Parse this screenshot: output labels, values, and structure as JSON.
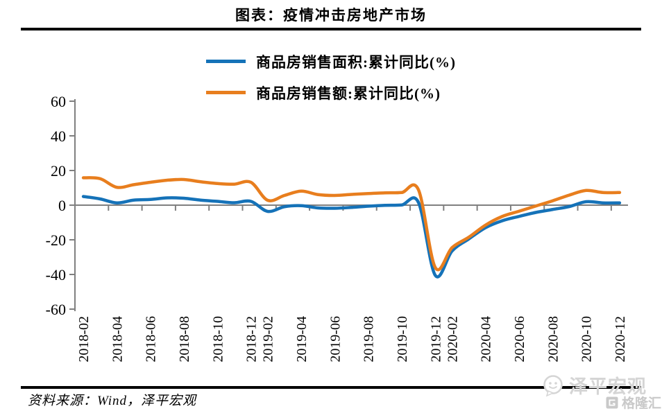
{
  "title": "图表：疫情冲击房地产市场",
  "legend": {
    "items": [
      {
        "label": "商品房销售面积:累计同比(%)",
        "color": "#1572B8"
      },
      {
        "label": "商品房销售额:累计同比(%)",
        "color": "#E87E1E"
      }
    ]
  },
  "source": "资料来源：Wind，泽平宏观",
  "watermark": {
    "name_label": "泽平宏观",
    "logo_label": "格隆汇"
  },
  "colors": {
    "axis": "#7f7f7f",
    "series_area": "#1572B8",
    "series_value": "#E87E1E",
    "watermark_gray": "#d5d5d5"
  },
  "chart_data": {
    "type": "line",
    "title": "图表：疫情冲击房地产市场",
    "xlabel": "",
    "ylabel": "",
    "ylim": [
      -60,
      60
    ],
    "yticks": [
      60,
      40,
      20,
      0,
      -20,
      -40,
      -60
    ],
    "grid": "zero-line-only",
    "legend_position": "top",
    "x_labels_shown": [
      "2018-02",
      "2018-04",
      "2018-06",
      "2018-08",
      "2018-10",
      "2018-12",
      "2019-02",
      "2019-04",
      "2019-06",
      "2019-08",
      "2019-10",
      "2019-12",
      "2020-02",
      "2020-04",
      "2020-06",
      "2020-08",
      "2020-10"
    ],
    "x": [
      "2018-02",
      "2018-03",
      "2018-04",
      "2018-05",
      "2018-06",
      "2018-07",
      "2018-08",
      "2018-09",
      "2018-10",
      "2018-11",
      "2018-12",
      "2019-02",
      "2019-03",
      "2019-04",
      "2019-05",
      "2019-06",
      "2019-07",
      "2019-08",
      "2019-09",
      "2019-10",
      "2019-11",
      "2019-12",
      "2020-02",
      "2020-03",
      "2020-04",
      "2020-05",
      "2020-06",
      "2020-07",
      "2020-08",
      "2020-09",
      "2020-10",
      "2020-11",
      "2020-12"
    ],
    "series": [
      {
        "name": "商品房销售面积:累计同比(%)",
        "color": "#1572B8",
        "values": [
          5.0,
          3.6,
          1.3,
          2.9,
          3.3,
          4.2,
          4.0,
          2.9,
          2.2,
          1.4,
          2.2,
          -3.6,
          -0.9,
          -0.3,
          -1.6,
          -1.8,
          -1.3,
          -0.6,
          -0.1,
          0.1,
          1.5,
          -40.5,
          -26.5,
          -19.5,
          -13.0,
          -9.0,
          -6.5,
          -4.2,
          -2.5,
          -0.8,
          2.0,
          1.3,
          1.3
        ]
      },
      {
        "name": "商品房销售额:累计同比(%)",
        "color": "#E87E1E",
        "values": [
          15.8,
          15.3,
          10.3,
          11.8,
          13.2,
          14.4,
          14.8,
          13.5,
          12.5,
          12.1,
          13.2,
          2.8,
          5.6,
          8.1,
          6.1,
          5.6,
          6.2,
          6.7,
          7.1,
          7.3,
          8.8,
          -36.0,
          -24.5,
          -18.5,
          -11.5,
          -6.5,
          -3.5,
          -0.5,
          2.5,
          5.8,
          8.5,
          7.3,
          7.3
        ]
      }
    ]
  }
}
